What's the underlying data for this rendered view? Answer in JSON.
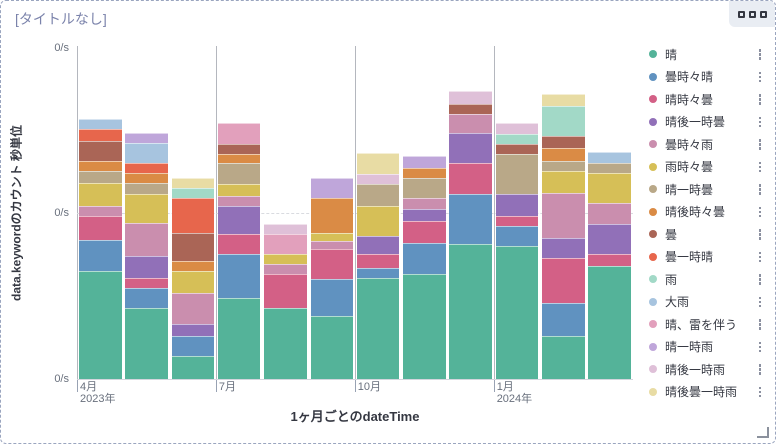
{
  "panel": {
    "title": "[タイトルなし]"
  },
  "chart_data": {
    "type": "bar",
    "stacked": true,
    "title": "[タイトルなし]",
    "xlabel": "1ヶ月ごとのdateTime",
    "ylabel": "data.keywordのカウント 秒単位",
    "y_ticks": [
      "0/s",
      "0/s",
      "0/s"
    ],
    "x_ticks": [
      {
        "label": "4月",
        "year": "2023年",
        "index": 0
      },
      {
        "label": "7月",
        "year": "",
        "index": 3
      },
      {
        "label": "10月",
        "year": "",
        "index": 6
      },
      {
        "label": "1月",
        "year": "2024年",
        "index": 9
      }
    ],
    "categories": [
      "2023-04",
      "2023-05",
      "2023-06",
      "2023-07",
      "2023-08",
      "2023-09",
      "2023-10",
      "2023-11",
      "2023-12",
      "2024-01",
      "2024-02",
      "2024-03"
    ],
    "value_note": "values estimated from bar pixel heights; y-axis tick labels all render as 0/s",
    "series": [
      {
        "name": "晴",
        "color": "#54B399",
        "values": [
          10.8,
          7.1,
          2.3,
          8.1,
          7.1,
          6.3,
          10.1,
          10.5,
          13.5,
          13.3,
          4.3,
          11.3
        ]
      },
      {
        "name": "曇時々晴",
        "color": "#6092C0",
        "values": [
          3.1,
          2.0,
          2.0,
          4.4,
          0,
          3.7,
          1.0,
          3.1,
          5.0,
          2.0,
          3.3,
          0
        ]
      },
      {
        "name": "晴時々曇",
        "color": "#D36086",
        "values": [
          2.4,
          1.0,
          0,
          2.0,
          3.4,
          3.0,
          1.4,
          2.2,
          3.1,
          1.0,
          4.5,
          1.2
        ]
      },
      {
        "name": "晴後一時曇",
        "color": "#9170B8",
        "values": [
          0,
          2.2,
          1.2,
          2.8,
          0,
          0,
          1.8,
          1.2,
          3.0,
          2.2,
          2.0,
          3.0
        ]
      },
      {
        "name": "曇時々雨",
        "color": "#CA8EAE",
        "values": [
          1.0,
          3.3,
          3.1,
          1.0,
          1.0,
          0.8,
          0,
          1.1,
          1.9,
          0,
          4.5,
          2.1
        ]
      },
      {
        "name": "雨時々曇",
        "color": "#D6BF57",
        "values": [
          2.3,
          2.9,
          2.2,
          1.2,
          1.0,
          0.8,
          3.0,
          0,
          0,
          0,
          2.2,
          3.0
        ]
      },
      {
        "name": "晴一時曇",
        "color": "#B9A888",
        "values": [
          1.2,
          1.1,
          0,
          2.1,
          0,
          0,
          2.2,
          2.0,
          0,
          4.0,
          1.0,
          1.0
        ]
      },
      {
        "name": "晴後時々曇",
        "color": "#DA8B45",
        "values": [
          1.0,
          1.0,
          1.0,
          0.9,
          0,
          3.5,
          0,
          1.0,
          0,
          0,
          1.3,
          0
        ]
      },
      {
        "name": "曇",
        "color": "#AA6556",
        "values": [
          2.0,
          0,
          2.8,
          1.0,
          0,
          0,
          0,
          0,
          1.0,
          1.0,
          1.2,
          0
        ]
      },
      {
        "name": "曇一時晴",
        "color": "#E7664C",
        "values": [
          1.2,
          1.0,
          3.5,
          0,
          0,
          0,
          0,
          0,
          0,
          0,
          0,
          0
        ]
      },
      {
        "name": "雨",
        "color": "#A2D9C7",
        "values": [
          0,
          0,
          1.0,
          0,
          0,
          0,
          0,
          0,
          0,
          1.0,
          3.0,
          0
        ]
      },
      {
        "name": "大雨",
        "color": "#A7C4DF",
        "values": [
          1.0,
          2.0,
          0,
          0,
          0,
          0,
          0,
          0,
          0,
          0,
          0,
          1.1
        ]
      },
      {
        "name": "晴、雷を伴う",
        "color": "#E2A0BC",
        "values": [
          0,
          0,
          0,
          2.1,
          2.0,
          0,
          0,
          0,
          0,
          0,
          0,
          0
        ]
      },
      {
        "name": "晴一時雨",
        "color": "#BFA6DA",
        "values": [
          0,
          1.0,
          0,
          0,
          0,
          2.0,
          0,
          1.2,
          0,
          0,
          0,
          0
        ]
      },
      {
        "name": "晴後一時雨",
        "color": "#DFC0D8",
        "values": [
          0,
          0,
          0,
          0,
          1.0,
          0,
          1.0,
          0,
          1.3,
          1.1,
          0,
          0
        ]
      },
      {
        "name": "晴後曇一時雨",
        "color": "#E8DCA4",
        "values": [
          0,
          0,
          1.0,
          0,
          0,
          0,
          2.1,
          0,
          0,
          0,
          1.2,
          0
        ]
      }
    ],
    "legend_position": "right",
    "grid": {
      "v_gridline_indices": [
        0,
        3,
        6,
        9
      ],
      "h_dashed_mid": true
    }
  }
}
